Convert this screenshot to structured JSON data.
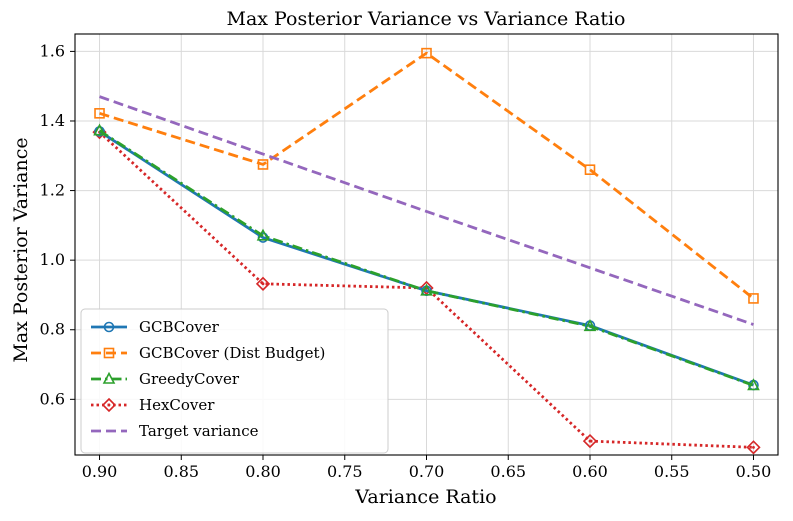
{
  "chart_data": {
    "type": "line",
    "title": "Max Posterior Variance vs Variance Ratio",
    "xlabel": "Variance Ratio",
    "ylabel": "Max Posterior Variance",
    "xlim": [
      0.915,
      0.485
    ],
    "ylim": [
      0.44,
      1.65
    ],
    "x_ticks": [
      0.9,
      0.85,
      0.8,
      0.75,
      0.7,
      0.65,
      0.6,
      0.55,
      0.5
    ],
    "x_tick_labels": [
      "0.90",
      "0.85",
      "0.80",
      "0.75",
      "0.70",
      "0.65",
      "0.60",
      "0.55",
      "0.50"
    ],
    "y_ticks": [
      0.6,
      0.8,
      1.0,
      1.2,
      1.4,
      1.6
    ],
    "y_tick_labels": [
      "0.6",
      "0.8",
      "1.0",
      "1.2",
      "1.4",
      "1.6"
    ],
    "grid": true,
    "legend_position": "lower-left",
    "x": [
      0.9,
      0.8,
      0.7,
      0.6,
      0.5
    ],
    "series": [
      {
        "name": "GCBCover",
        "color": "#1f77b4",
        "style": "solid",
        "marker": "circle",
        "values": [
          1.37,
          1.065,
          0.912,
          0.812,
          0.641
        ]
      },
      {
        "name": "GCBCover (Dist Budget)",
        "color": "#ff7f0e",
        "style": "dashed",
        "marker": "square",
        "values": [
          1.422,
          1.275,
          1.595,
          1.26,
          0.89
        ]
      },
      {
        "name": "GreedyCover",
        "color": "#2ca02c",
        "style": "dashdot",
        "marker": "triangle",
        "values": [
          1.372,
          1.07,
          0.912,
          0.81,
          0.64
        ]
      },
      {
        "name": "HexCover",
        "color": "#d62728",
        "style": "dotted",
        "marker": "diamond",
        "values": [
          1.368,
          0.932,
          0.92,
          0.48,
          0.462
        ]
      },
      {
        "name": "Target variance",
        "color": "#9467bd",
        "style": "dashed",
        "marker": "none",
        "values": [
          1.47,
          1.305,
          1.14,
          0.978,
          0.815
        ]
      }
    ]
  }
}
